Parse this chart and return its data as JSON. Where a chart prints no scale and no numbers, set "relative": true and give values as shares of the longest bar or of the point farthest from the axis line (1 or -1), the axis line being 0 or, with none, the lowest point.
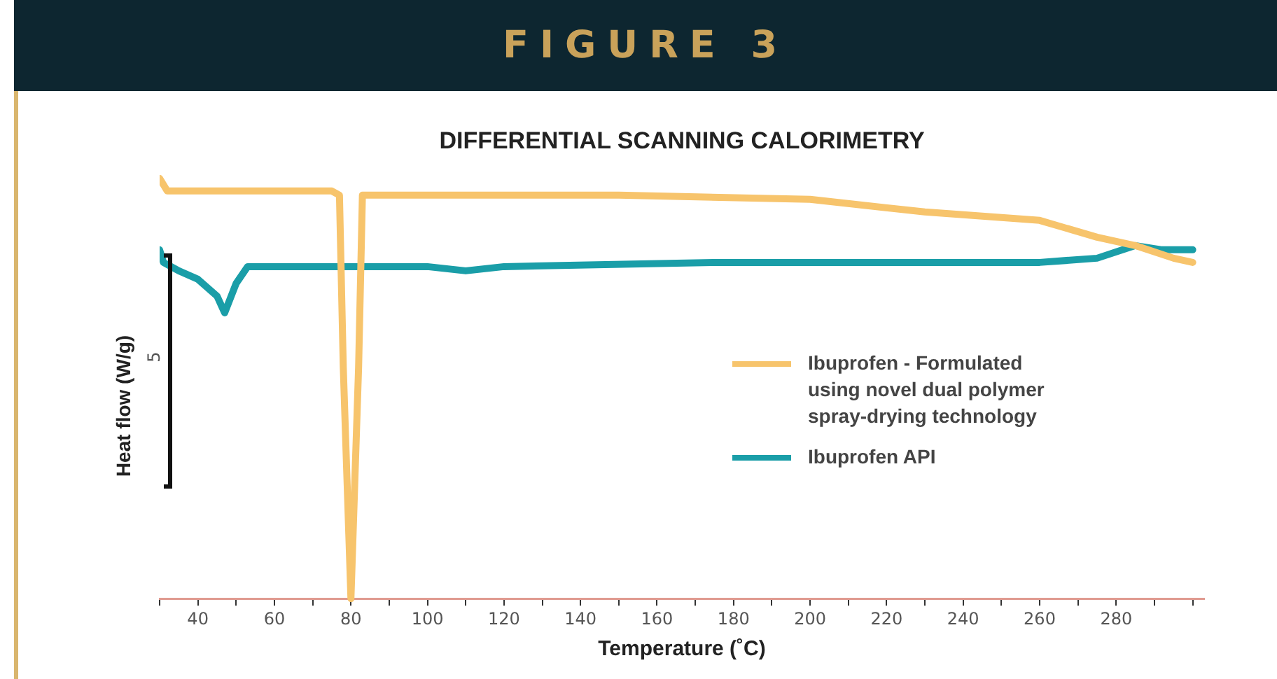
{
  "chart_data": {
    "type": "line",
    "title": "DIFFERENTIAL SCANNING CALORIMETRY",
    "xlabel": "Temperature (˚C)",
    "ylabel": "Heat flow (W/g)",
    "relative": true,
    "annotations": [
      "FIGURE 3",
      "5"
    ],
    "xlim": [
      30,
      303
    ],
    "xticks": [
      {
        "value": 30,
        "label": null
      },
      40,
      {
        "value": 50,
        "label": null
      },
      60,
      {
        "value": 70,
        "label": null
      },
      80,
      {
        "value": 90,
        "label": null
      },
      100,
      {
        "value": 110,
        "label": null
      },
      120,
      {
        "value": 130,
        "label": null
      },
      140,
      {
        "value": 150,
        "label": null
      },
      160,
      {
        "value": 170,
        "label": null
      },
      180,
      {
        "value": 190,
        "label": null
      },
      200,
      {
        "value": 210,
        "label": null
      },
      220,
      {
        "value": 230,
        "label": null
      },
      240,
      {
        "value": 250,
        "label": null
      },
      260,
      {
        "value": 270,
        "label": null
      },
      280,
      {
        "value": 290,
        "label": null
      },
      {
        "value": 300,
        "label": null
      }
    ],
    "grid": false,
    "legend": "right",
    "marker": "none",
    "line_style": "solid",
    "series": [
      {
        "name": "Ibuprofen - Formulated using novel dual polymer spray-drying technology",
        "color": "#f7c46c",
        "x": [
          30,
          32,
          40,
          65,
          75,
          77,
          78,
          80,
          82,
          83,
          100,
          150,
          200,
          230,
          260,
          275,
          285,
          295,
          300
        ],
        "values": [
          1.0,
          0.97,
          0.97,
          0.97,
          0.97,
          0.96,
          0.55,
          0,
          0.55,
          0.96,
          0.96,
          0.96,
          0.95,
          0.92,
          0.9,
          0.86,
          0.84,
          0.81,
          0.8
        ]
      },
      {
        "name": "Ibuprofen API",
        "color": "#1a9ea8",
        "x": [
          30,
          31,
          35,
          40,
          45,
          47,
          50,
          53,
          60,
          100,
          110,
          120,
          175,
          230,
          260,
          275,
          285,
          292,
          300
        ],
        "values": [
          0.83,
          0.8,
          0.78,
          0.76,
          0.72,
          0.68,
          0.75,
          0.79,
          0.79,
          0.79,
          0.78,
          0.79,
          0.8,
          0.8,
          0.8,
          0.81,
          0.84,
          0.83,
          0.83
        ]
      }
    ]
  }
}
